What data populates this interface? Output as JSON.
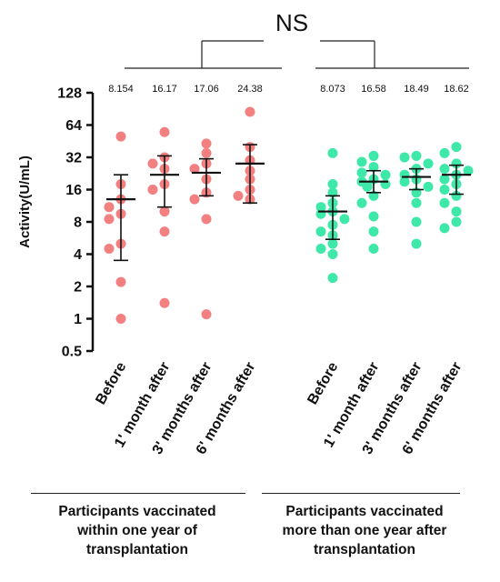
{
  "chart_data": {
    "type": "scatter",
    "ylabel": "Activity(U/mL)",
    "yscale": "log2",
    "ylim": [
      0.5,
      128
    ],
    "yticks": [
      "0.5",
      "1",
      "2",
      "4",
      "8",
      "16",
      "32",
      "64",
      "128"
    ],
    "categories": [
      "Before",
      "1' month after",
      "3' months after",
      "6' months after"
    ],
    "significance": "NS",
    "groups": [
      {
        "name": "Participants vaccinated within one year of transplantation",
        "caption_lines": [
          "Participants vaccinated",
          "within one year of",
          "transplantation"
        ],
        "color": "#f28080",
        "means": [
          "8.154",
          "16.17",
          "17.06",
          "24.38"
        ],
        "series": [
          {
            "category": "Before",
            "center": 13.0,
            "low": 3.5,
            "high": 22.0,
            "points": [
              50,
              18,
              13,
              11,
              9.5,
              8.5,
              5,
              4.5,
              2.2,
              1.0
            ]
          },
          {
            "category": "1' month after",
            "center": 22.0,
            "low": 11.0,
            "high": 33.0,
            "points": [
              55,
              32,
              28,
              25,
              18,
              16,
              10,
              6.5,
              1.4
            ]
          },
          {
            "category": "3' months after",
            "center": 23.0,
            "low": 14.0,
            "high": 31.0,
            "points": [
              43,
              35,
              28,
              25,
              20,
              15,
              13,
              8.5,
              1.1
            ]
          },
          {
            "category": "6' months after",
            "center": 28.0,
            "low": 12.0,
            "high": 42.0,
            "points": [
              85,
              40,
              30,
              24,
              20,
              16,
              14,
              13
            ]
          }
        ]
      },
      {
        "name": "Participants vaccinated more than one year after transplantation",
        "caption_lines": [
          "Participants vaccinated",
          "more than one year after",
          "transplantation"
        ],
        "color": "#3ee8a8",
        "means": [
          "8.073",
          "16.58",
          "18.49",
          "18.62"
        ],
        "series": [
          {
            "category": "Before",
            "center": 10.0,
            "low": 5.5,
            "high": 14.0,
            "points": [
              35,
              18,
              15,
              12,
              11,
              10,
              9.5,
              8.5,
              7.5,
              6.5,
              6,
              5,
              4.5,
              4,
              2.4
            ]
          },
          {
            "category": "1' month after",
            "center": 19.0,
            "low": 15.0,
            "high": 24.0,
            "points": [
              33,
              29,
              26,
              23,
              22,
              20,
              19,
              18,
              17,
              14,
              12,
              9,
              6.5,
              4.5
            ]
          },
          {
            "category": "3' months after",
            "center": 21.0,
            "low": 16.0,
            "high": 25.0,
            "points": [
              33,
              32,
              28,
              25,
              22,
              20,
              19,
              17,
              15,
              12,
              8,
              5
            ]
          },
          {
            "category": "6' months after",
            "center": 22.0,
            "low": 14.5,
            "high": 27.0,
            "points": [
              40,
              35,
              28,
              25,
              24,
              22,
              20,
              18,
              16,
              14,
              12,
              10,
              8,
              7
            ]
          }
        ]
      }
    ]
  }
}
